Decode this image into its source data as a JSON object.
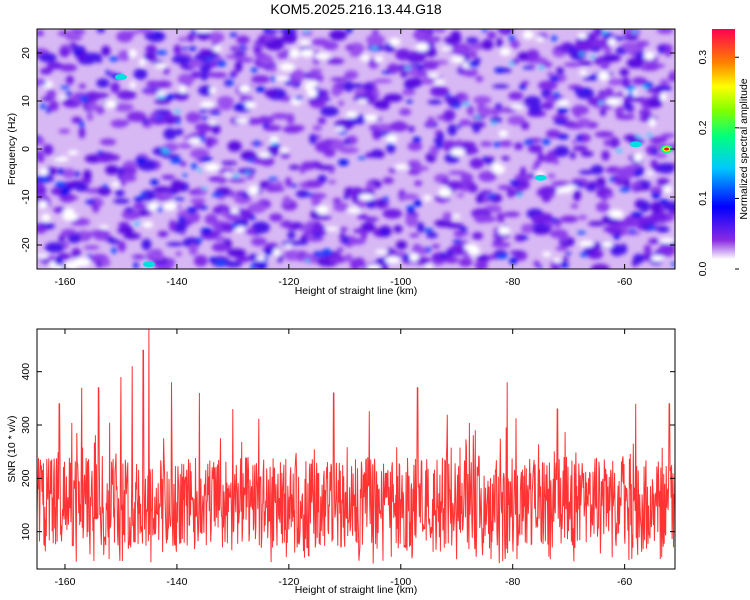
{
  "title": "KOM5.2025.216.13.44.G18",
  "chart_data": [
    {
      "type": "heatmap",
      "title": "KOM5.2025.216.13.44.G18",
      "xlabel": "Height of straight line (km)",
      "ylabel": "Frequency (Hz)",
      "xlim": [
        -165,
        -51
      ],
      "ylim": [
        -25,
        25
      ],
      "x_ticks": [
        "-160",
        "-140",
        "-120",
        "-100",
        "-80",
        "-60"
      ],
      "y_ticks": [
        "20",
        "10",
        "0",
        "-10",
        "-20"
      ],
      "colorbar": {
        "label": "Normalized spectral amplitude",
        "range": [
          0.0,
          0.34
        ],
        "ticks": [
          "0.0",
          "0.1",
          "0.2",
          "0.3"
        ],
        "colors": [
          "#ffffff",
          "#8a2be2",
          "#5a00e0",
          "#0000ff",
          "#00c8ff",
          "#00ff80",
          "#80ff00",
          "#ffff00",
          "#ff8000",
          "#ff0040"
        ]
      },
      "peak": {
        "x": -52.5,
        "y": 0,
        "value": 0.34
      },
      "notable_features": [
        {
          "x": -58,
          "y": 1,
          "value": 0.12
        },
        {
          "x": -75,
          "y": -6,
          "value": 0.1
        },
        {
          "x": -150,
          "y": 15,
          "value": 0.1
        },
        {
          "x": -145,
          "y": -24,
          "value": 0.1
        }
      ]
    },
    {
      "type": "line",
      "xlabel": "Height of straight line (km)",
      "ylabel": "SNR (10 * v/v)",
      "xlim": [
        -165,
        -51
      ],
      "ylim": [
        30,
        480
      ],
      "x_ticks": [
        "-160",
        "-140",
        "-120",
        "-100",
        "-80",
        "-60"
      ],
      "y_ticks": [
        "100",
        "200",
        "300",
        "400"
      ],
      "line_color": "#ff3333",
      "summary": {
        "typical_range": [
          60,
          260
        ],
        "max": 480,
        "max_at": -145,
        "min": 40
      },
      "peaks": [
        {
          "x": -161,
          "y": 340
        },
        {
          "x": -157,
          "y": 370
        },
        {
          "x": -154,
          "y": 370
        },
        {
          "x": -150,
          "y": 390
        },
        {
          "x": -148,
          "y": 410
        },
        {
          "x": -146,
          "y": 440
        },
        {
          "x": -145,
          "y": 480
        },
        {
          "x": -141,
          "y": 380
        },
        {
          "x": -136,
          "y": 360
        },
        {
          "x": -130,
          "y": 330
        },
        {
          "x": -112,
          "y": 360
        },
        {
          "x": -97,
          "y": 370
        },
        {
          "x": -81,
          "y": 380
        },
        {
          "x": -72,
          "y": 330
        },
        {
          "x": -58,
          "y": 340
        },
        {
          "x": -52,
          "y": 340
        }
      ]
    }
  ]
}
